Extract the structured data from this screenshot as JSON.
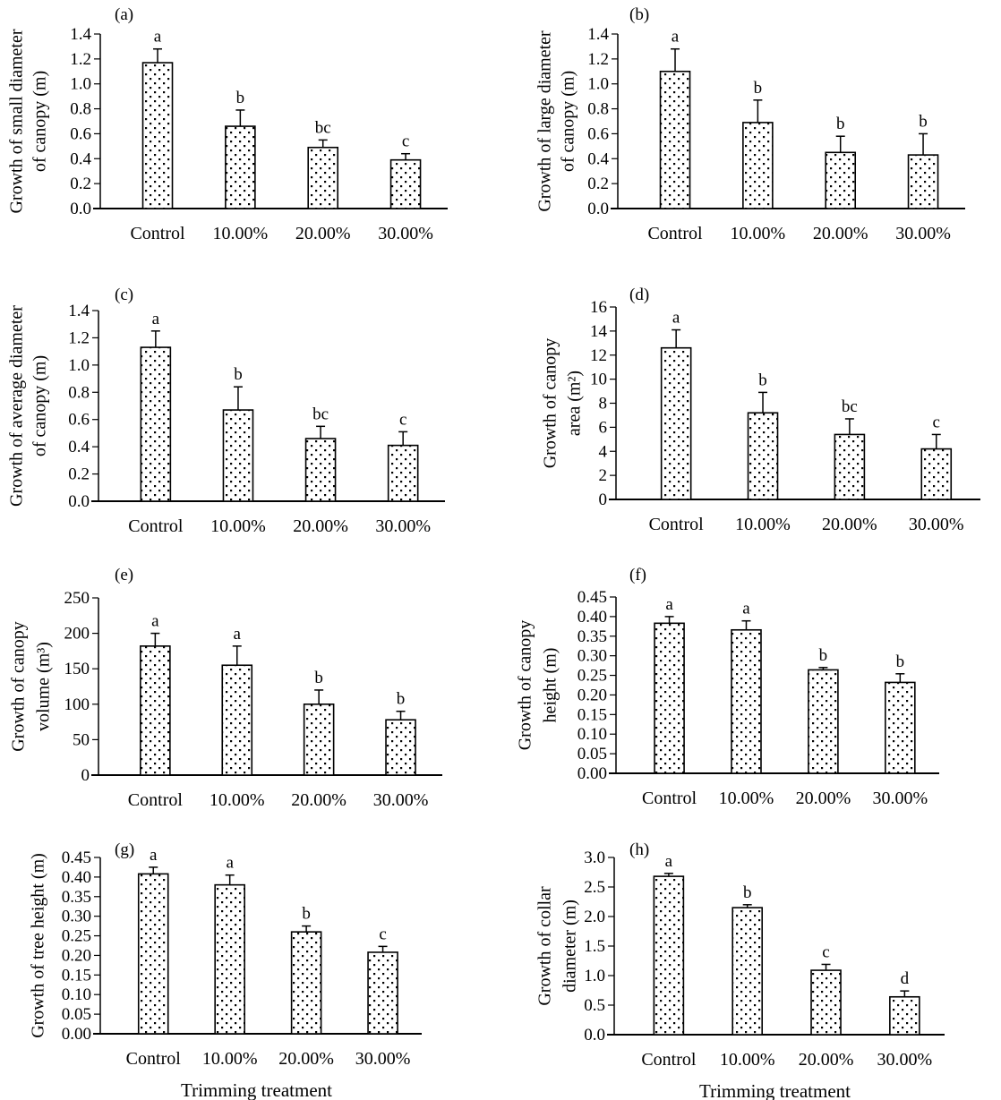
{
  "figure": {
    "xlabel_common": "Trimming treatment"
  },
  "chart_data": [
    {
      "type": "bar",
      "panel": "(a)",
      "categories": [
        "Control",
        "10.00%",
        "20.00%",
        "30.00%"
      ],
      "values": [
        1.17,
        0.66,
        0.49,
        0.39
      ],
      "error_upper": [
        1.28,
        0.79,
        0.55,
        0.44
      ],
      "letters": [
        "a",
        "b",
        "bc",
        "c"
      ],
      "ylabel": [
        "Growth of small diameter",
        "of canopy (m)"
      ],
      "xlabel": "",
      "ylim": [
        0,
        1.4
      ],
      "yticks": [
        "0.0",
        "0.2",
        "0.4",
        "0.6",
        "0.8",
        "1.0",
        "1.2",
        "1.4"
      ],
      "grid": false
    },
    {
      "type": "bar",
      "panel": "(b)",
      "categories": [
        "Control",
        "10.00%",
        "20.00%",
        "30.00%"
      ],
      "values": [
        1.1,
        0.69,
        0.45,
        0.43
      ],
      "error_upper": [
        1.28,
        0.87,
        0.58,
        0.6
      ],
      "letters": [
        "a",
        "b",
        "b",
        "b"
      ],
      "ylabel": [
        "Growth of large diameter",
        "of canopy (m)"
      ],
      "xlabel": "",
      "ylim": [
        0,
        1.4
      ],
      "yticks": [
        "0.0",
        "0.2",
        "0.4",
        "0.6",
        "0.8",
        "1.0",
        "1.2",
        "1.4"
      ],
      "grid": false
    },
    {
      "type": "bar",
      "panel": "(c)",
      "categories": [
        "Control",
        "10.00%",
        "20.00%",
        "30.00%"
      ],
      "values": [
        1.13,
        0.67,
        0.46,
        0.41
      ],
      "error_upper": [
        1.25,
        0.84,
        0.55,
        0.51
      ],
      "letters": [
        "a",
        "b",
        "bc",
        "c"
      ],
      "ylabel": [
        "Growth of average diameter",
        "of canopy (m)"
      ],
      "xlabel": "",
      "ylim": [
        0,
        1.4
      ],
      "yticks": [
        "0.0",
        "0.2",
        "0.4",
        "0.6",
        "0.8",
        "1.0",
        "1.2",
        "1.4"
      ],
      "grid": false
    },
    {
      "type": "bar",
      "panel": "(d)",
      "categories": [
        "Control",
        "10.00%",
        "20.00%",
        "30.00%"
      ],
      "values": [
        12.6,
        7.2,
        5.4,
        4.2
      ],
      "error_upper": [
        14.1,
        8.9,
        6.7,
        5.4
      ],
      "letters": [
        "a",
        "b",
        "bc",
        "c"
      ],
      "ylabel": [
        "Growth of canopy",
        "area (m²)"
      ],
      "xlabel": "",
      "ylim": [
        0,
        16
      ],
      "yticks": [
        "0",
        "2",
        "4",
        "6",
        "8",
        "10",
        "12",
        "14",
        "16"
      ],
      "grid": false
    },
    {
      "type": "bar",
      "panel": "(e)",
      "categories": [
        "Control",
        "10.00%",
        "20.00%",
        "30.00%"
      ],
      "values": [
        182,
        155,
        100,
        78
      ],
      "error_upper": [
        200,
        182,
        120,
        90
      ],
      "letters": [
        "a",
        "a",
        "b",
        "b"
      ],
      "ylabel": [
        "Growth of canopy",
        "volume (m³)"
      ],
      "xlabel": "",
      "ylim": [
        0,
        250
      ],
      "yticks": [
        "0",
        "50",
        "100",
        "150",
        "200",
        "250"
      ],
      "grid": false
    },
    {
      "type": "bar",
      "panel": "(f)",
      "categories": [
        "Control",
        "10.00%",
        "20.00%",
        "30.00%"
      ],
      "values": [
        0.383,
        0.366,
        0.264,
        0.232
      ],
      "error_upper": [
        0.4,
        0.389,
        0.27,
        0.254
      ],
      "letters": [
        "a",
        "a",
        "b",
        "b"
      ],
      "ylabel": [
        "Growth of canopy",
        "height (m)"
      ],
      "xlabel": "",
      "ylim": [
        0,
        0.45
      ],
      "yticks": [
        "0.00",
        "0.05",
        "0.10",
        "0.15",
        "0.20",
        "0.25",
        "0.30",
        "0.35",
        "0.40",
        "0.45"
      ],
      "grid": false
    },
    {
      "type": "bar",
      "panel": "(g)",
      "categories": [
        "Control",
        "10.00%",
        "20.00%",
        "30.00%"
      ],
      "values": [
        0.408,
        0.38,
        0.26,
        0.208
      ],
      "error_upper": [
        0.425,
        0.405,
        0.275,
        0.223
      ],
      "letters": [
        "a",
        "a",
        "b",
        "c"
      ],
      "ylabel": [
        "Growth of tree height (m)"
      ],
      "xlabel": "Trimming treatment",
      "ylim": [
        0,
        0.45
      ],
      "yticks": [
        "0.00",
        "0.05",
        "0.10",
        "0.15",
        "0.20",
        "0.25",
        "0.30",
        "0.35",
        "0.40",
        "0.45"
      ],
      "grid": false
    },
    {
      "type": "bar",
      "panel": "(h)",
      "categories": [
        "Control",
        "10.00%",
        "20.00%",
        "30.00%"
      ],
      "values": [
        2.68,
        2.15,
        1.09,
        0.64
      ],
      "error_upper": [
        2.73,
        2.2,
        1.19,
        0.74
      ],
      "letters": [
        "a",
        "b",
        "c",
        "d"
      ],
      "ylabel": [
        "Growth of collar",
        "diameter (m)"
      ],
      "xlabel": "Trimming treatment",
      "ylim": [
        0,
        3.0
      ],
      "yticks": [
        "0.0",
        "0.5",
        "1.0",
        "1.5",
        "2.0",
        "2.5",
        "3.0"
      ],
      "grid": false
    }
  ]
}
